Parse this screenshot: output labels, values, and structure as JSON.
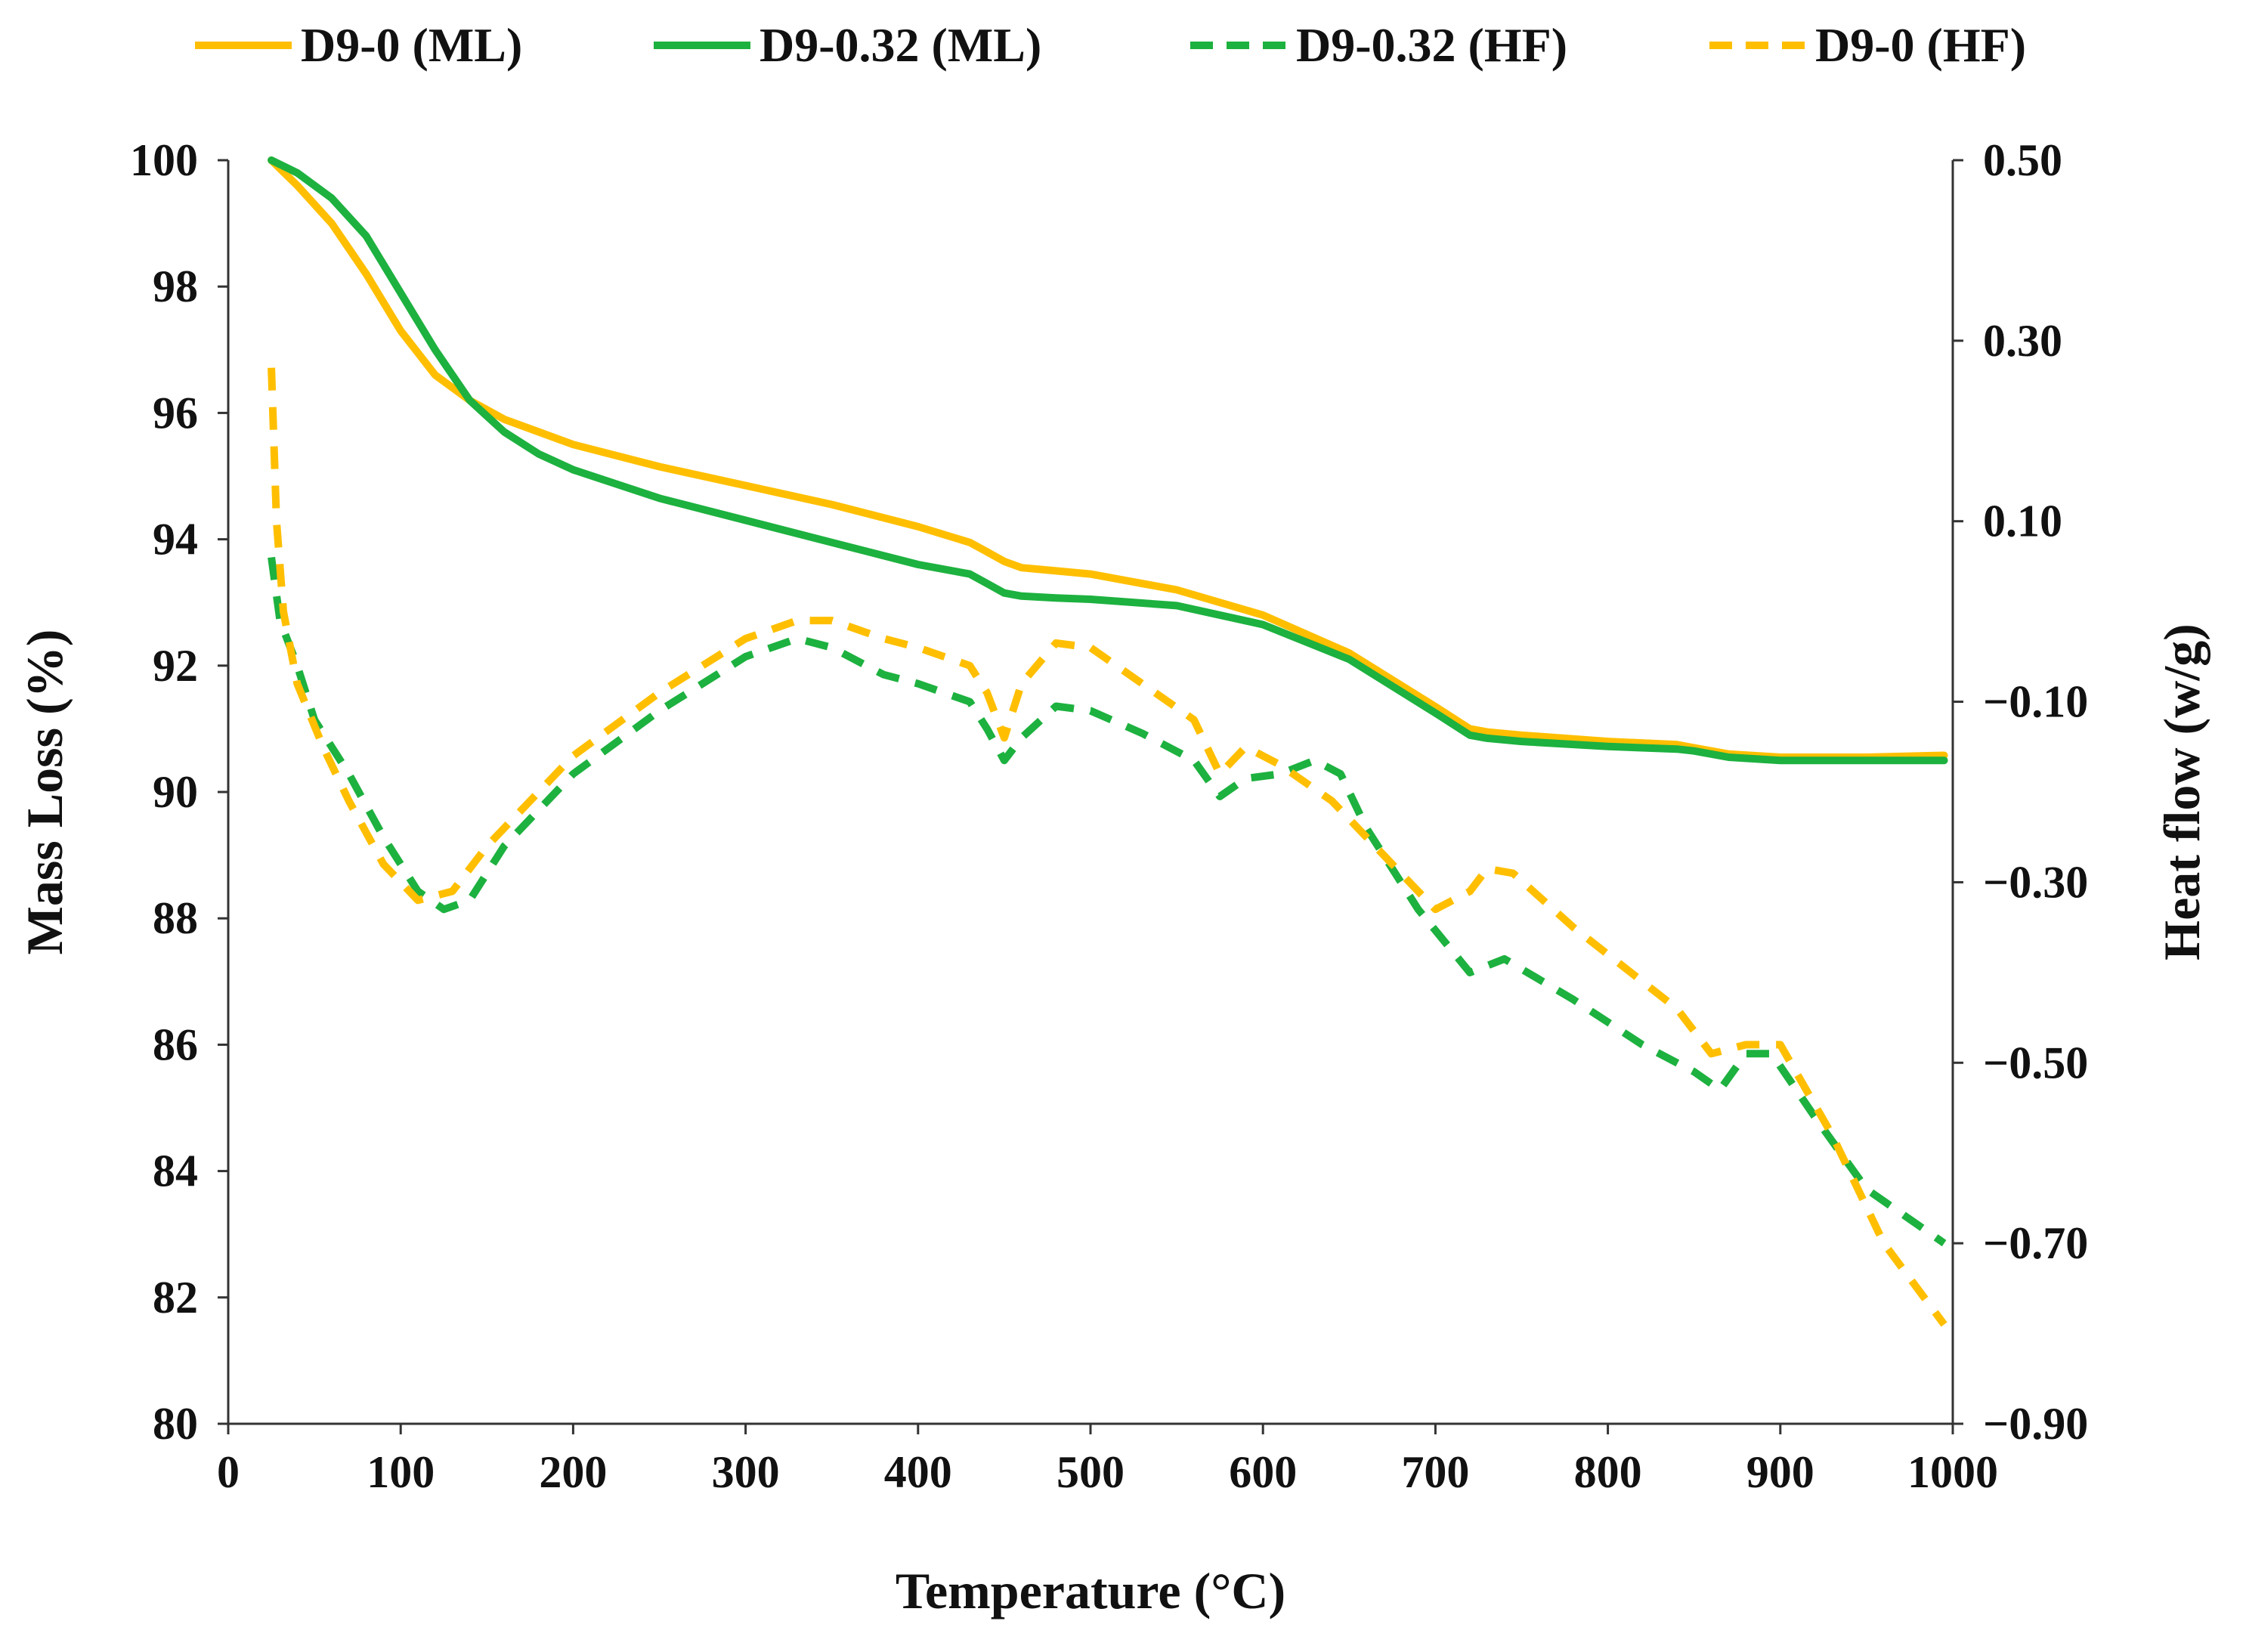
{
  "chart_data": {
    "type": "line",
    "xlabel": "Temperature (°C)",
    "ylabel": "Mass Loss (%)",
    "y2label": "Heat flow (w/g)",
    "xlim": [
      0,
      1000
    ],
    "ylim": [
      80,
      100
    ],
    "y2lim": [
      -0.9,
      0.5
    ],
    "x_ticks": [
      "0",
      "100",
      "200",
      "300",
      "400",
      "500",
      "600",
      "700",
      "800",
      "900",
      "1000"
    ],
    "y_ticks": [
      "80",
      "82",
      "84",
      "86",
      "88",
      "90",
      "92",
      "94",
      "96",
      "98",
      "100"
    ],
    "y2_ticks": [
      "0.50",
      "0.30",
      "0.10",
      "−0.10",
      "−0.30",
      "−0.50",
      "−0.70",
      "−0.90"
    ],
    "grid": false,
    "legend_position": "top",
    "legend": [
      "D9-0 (ML)",
      "D9-0.32 (ML)",
      "D9-0.32 (HF)",
      "D9-0 (HF)"
    ],
    "colors": {
      "yellow": "#FFBF00",
      "green": "#1DB13F",
      "axis": "#333333"
    },
    "series": [
      {
        "name": "D9-0 (ML)",
        "axis": "left",
        "dash": "solid",
        "color": "#FFBF00",
        "x": [
          25,
          40,
          60,
          80,
          100,
          120,
          140,
          160,
          180,
          200,
          250,
          300,
          350,
          400,
          430,
          440,
          450,
          460,
          480,
          500,
          550,
          600,
          650,
          700,
          720,
          730,
          750,
          800,
          840,
          850,
          870,
          900,
          950,
          995
        ],
        "y": [
          100,
          99.6,
          99.0,
          98.2,
          97.3,
          96.6,
          96.2,
          95.9,
          95.7,
          95.5,
          95.15,
          94.85,
          94.55,
          94.2,
          93.95,
          93.8,
          93.65,
          93.55,
          93.5,
          93.45,
          93.2,
          92.8,
          92.2,
          91.35,
          91.0,
          90.95,
          90.9,
          90.8,
          90.75,
          90.7,
          90.6,
          90.55,
          90.55,
          90.58
        ]
      },
      {
        "name": "D9-0.32 (ML)",
        "axis": "left",
        "dash": "solid",
        "color": "#1DB13F",
        "x": [
          25,
          40,
          60,
          80,
          100,
          120,
          140,
          160,
          180,
          200,
          250,
          300,
          350,
          400,
          430,
          440,
          450,
          460,
          480,
          500,
          550,
          600,
          650,
          700,
          720,
          730,
          750,
          800,
          840,
          850,
          870,
          900,
          950,
          995
        ],
        "y": [
          100,
          99.8,
          99.4,
          98.8,
          97.9,
          97.0,
          96.2,
          95.7,
          95.35,
          95.1,
          94.65,
          94.3,
          93.95,
          93.6,
          93.45,
          93.3,
          93.15,
          93.1,
          93.07,
          93.05,
          92.95,
          92.65,
          92.1,
          91.25,
          90.9,
          90.85,
          90.8,
          90.72,
          90.68,
          90.65,
          90.55,
          90.5,
          90.5,
          90.5
        ]
      },
      {
        "name": "D9-0.32 (HF)",
        "axis": "right",
        "dash": "dashed",
        "color": "#1DB13F",
        "x": [
          25,
          30,
          40,
          50,
          70,
          90,
          110,
          125,
          140,
          160,
          200,
          250,
          300,
          330,
          350,
          380,
          400,
          430,
          440,
          450,
          460,
          480,
          500,
          530,
          560,
          575,
          590,
          610,
          630,
          645,
          660,
          690,
          720,
          740,
          780,
          820,
          850,
          865,
          880,
          895,
          920,
          950,
          995
        ],
        "y": [
          0.06,
          -0.01,
          -0.06,
          -0.12,
          -0.18,
          -0.25,
          -0.31,
          -0.33,
          -0.32,
          -0.26,
          -0.18,
          -0.11,
          -0.05,
          -0.03,
          -0.04,
          -0.07,
          -0.08,
          -0.1,
          -0.13,
          -0.165,
          -0.14,
          -0.105,
          -0.11,
          -0.135,
          -0.165,
          -0.205,
          -0.185,
          -0.18,
          -0.165,
          -0.18,
          -0.24,
          -0.33,
          -0.4,
          -0.385,
          -0.43,
          -0.48,
          -0.51,
          -0.53,
          -0.49,
          -0.49,
          -0.56,
          -0.64,
          -0.7
        ]
      },
      {
        "name": "D9-0 (HF)",
        "axis": "right",
        "dash": "dashed",
        "color": "#FFBF00",
        "x": [
          25,
          28,
          32,
          40,
          55,
          70,
          90,
          110,
          130,
          150,
          200,
          250,
          300,
          330,
          350,
          380,
          400,
          430,
          440,
          450,
          460,
          480,
          500,
          530,
          560,
          575,
          590,
          610,
          640,
          670,
          700,
          720,
          730,
          745,
          780,
          820,
          840,
          860,
          880,
          900,
          930,
          960,
          995
        ],
        "y": [
          0.27,
          0.1,
          0.0,
          -0.08,
          -0.15,
          -0.21,
          -0.28,
          -0.32,
          -0.31,
          -0.26,
          -0.16,
          -0.09,
          -0.03,
          -0.01,
          -0.01,
          -0.03,
          -0.04,
          -0.06,
          -0.09,
          -0.14,
          -0.08,
          -0.035,
          -0.04,
          -0.08,
          -0.12,
          -0.18,
          -0.15,
          -0.17,
          -0.21,
          -0.27,
          -0.33,
          -0.31,
          -0.285,
          -0.29,
          -0.35,
          -0.41,
          -0.44,
          -0.49,
          -0.48,
          -0.48,
          -0.58,
          -0.7,
          -0.79
        ]
      }
    ]
  }
}
